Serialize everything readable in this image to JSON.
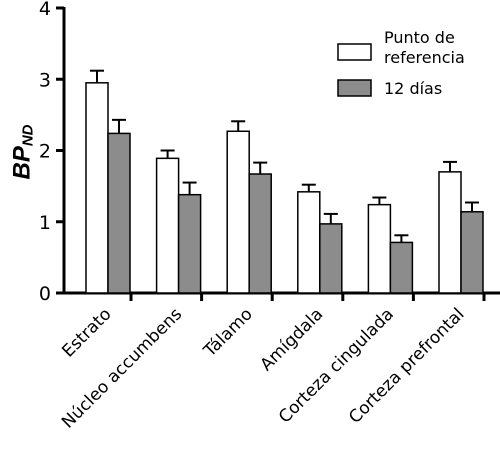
{
  "chart_data": {
    "type": "bar",
    "ylabel_main": "BP",
    "ylabel_sub": "ND",
    "xlabel": "",
    "title": "",
    "ylim": [
      0,
      4
    ],
    "yticks": [
      "0",
      "1",
      "2",
      "3",
      "4"
    ],
    "categories": [
      "Estrato",
      "Núcleo accumbens",
      "Tálamo",
      "Amígdala",
      "Corteza cingulada",
      "Corteza prefrontal"
    ],
    "series": [
      {
        "name": "Punto de referencia",
        "color": "#ffffff",
        "values": [
          2.95,
          1.89,
          2.27,
          1.42,
          1.24,
          1.7
        ],
        "errors": [
          0.17,
          0.11,
          0.14,
          0.1,
          0.1,
          0.14
        ]
      },
      {
        "name": "12 días",
        "color": "#8c8c8c",
        "values": [
          2.24,
          1.38,
          1.67,
          0.97,
          0.71,
          1.14
        ],
        "errors": [
          0.19,
          0.17,
          0.16,
          0.14,
          0.1,
          0.13
        ]
      }
    ],
    "legend_lines": [
      [
        "Punto de",
        "referencia"
      ],
      [
        "12 días"
      ]
    ],
    "legend_position": "top-right",
    "grid": false
  }
}
